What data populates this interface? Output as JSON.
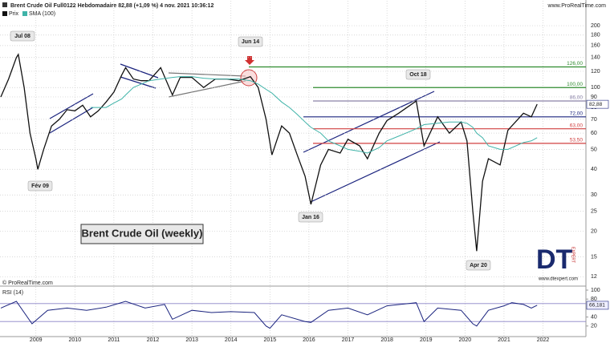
{
  "chart_data": [
    {
      "type": "line",
      "title": "Brent Crude Oil Full0122 Hebdomadaire 82,88 (+1,09 %) 4 nov. 2021 10:36:12",
      "source": "www.ProRealTime.com",
      "copyright": "© ProRealTime.com",
      "log_scale": true,
      "x": [
        2008.1,
        2008.3,
        2008.5,
        2008.55,
        2008.7,
        2008.85,
        2009.0,
        2009.05,
        2009.2,
        2009.4,
        2009.6,
        2009.8,
        2010.0,
        2010.2,
        2010.4,
        2010.6,
        2010.8,
        2011.0,
        2011.2,
        2011.3,
        2011.5,
        2011.7,
        2011.9,
        2012.2,
        2012.5,
        2012.7,
        2013.0,
        2013.3,
        2013.6,
        2013.9,
        2014.2,
        2014.5,
        2014.7,
        2014.9,
        2015.05,
        2015.3,
        2015.5,
        2015.7,
        2015.9,
        2016.05,
        2016.3,
        2016.5,
        2016.8,
        2017.0,
        2017.3,
        2017.5,
        2017.8,
        2018.0,
        2018.3,
        2018.75,
        2018.95,
        2019.3,
        2019.6,
        2019.9,
        2020.05,
        2020.2,
        2020.3,
        2020.45,
        2020.6,
        2020.9,
        2021.1,
        2021.5,
        2021.7,
        2021.85
      ],
      "series": [
        {
          "name": "Prix",
          "color": "#111111",
          "values": [
            90,
            110,
            140,
            145,
            100,
            60,
            45,
            40,
            50,
            65,
            70,
            78,
            77,
            82,
            72,
            77,
            85,
            95,
            115,
            125,
            110,
            108,
            108,
            125,
            92,
            112,
            112,
            100,
            110,
            110,
            108,
            113,
            100,
            70,
            47,
            65,
            60,
            47,
            37,
            27,
            42,
            50,
            48,
            56,
            52,
            45,
            60,
            69,
            75,
            86,
            52,
            72,
            60,
            68,
            55,
            25,
            16,
            35,
            45,
            42,
            62,
            75,
            72,
            83
          ]
        },
        {
          "name": "SMA (100)",
          "color": "#3fb3a8",
          "values": [
            null,
            null,
            null,
            null,
            null,
            null,
            null,
            null,
            null,
            null,
            null,
            null,
            null,
            null,
            80,
            80,
            80,
            84,
            88,
            92,
            100,
            104,
            108,
            110,
            112,
            113,
            113,
            111,
            110,
            110,
            110,
            108,
            104,
            98,
            94,
            85,
            80,
            74,
            68,
            64,
            60,
            55,
            52,
            50,
            49,
            48,
            51,
            55,
            58,
            63,
            66,
            67,
            68,
            68,
            67,
            64,
            60,
            57,
            52,
            50,
            50,
            54,
            55,
            57
          ]
        }
      ],
      "xlim": [
        2008.08,
        2023.1
      ],
      "xticks": [
        2009,
        2010,
        2011,
        2012,
        2013,
        2014,
        2015,
        2016,
        2017,
        2018,
        2019,
        2020,
        2021,
        2022
      ],
      "ylim": [
        11,
        255
      ],
      "yticks": [
        12,
        15,
        20,
        25,
        30,
        40,
        50,
        60,
        70,
        80,
        90,
        100,
        120,
        140,
        160,
        180,
        200
      ],
      "grid": true,
      "last_value": {
        "value": 82.88,
        "label": "82,88"
      },
      "levels": [
        {
          "value": 126,
          "label": "126,00",
          "color": "#2e8b2e"
        },
        {
          "value": 100,
          "label": "100,00",
          "color": "#2e8b2e"
        },
        {
          "value": 86,
          "label": "86,00",
          "color": "#8a82a8"
        },
        {
          "value": 72,
          "label": "72,00",
          "color": "#1a237e"
        },
        {
          "value": 63,
          "label": "63,00",
          "color": "#d04040"
        },
        {
          "value": 53.5,
          "label": "53,50",
          "color": "#d04040"
        }
      ],
      "annotations": [
        "Jul 08",
        "Fév 09",
        "Jun 14",
        "Oct 18",
        "Jan 16",
        "Apr 20",
        "Brent Crude Oil (weekly)"
      ],
      "logo": {
        "title": "DT",
        "subtitle": "EXPERT",
        "url": "www.dtexpert.com"
      }
    },
    {
      "type": "line",
      "title": "RSI (14)",
      "x": [
        2008.1,
        2008.5,
        2008.9,
        2009.3,
        2009.8,
        2010.3,
        2010.8,
        2011.3,
        2011.8,
        2012.3,
        2012.5,
        2013.0,
        2013.5,
        2014.0,
        2014.6,
        2014.9,
        2015.0,
        2015.3,
        2015.9,
        2016.05,
        2016.5,
        2017.0,
        2017.5,
        2018.0,
        2018.75,
        2018.95,
        2019.3,
        2019.9,
        2020.2,
        2020.3,
        2020.6,
        2021.0,
        2021.2,
        2021.5,
        2021.7,
        2021.85
      ],
      "series": [
        {
          "name": "RSI (14)",
          "color": "#1a237e",
          "values": [
            60,
            75,
            25,
            55,
            60,
            55,
            62,
            75,
            60,
            68,
            35,
            55,
            50,
            52,
            50,
            20,
            15,
            45,
            30,
            28,
            55,
            60,
            45,
            65,
            72,
            30,
            60,
            55,
            25,
            20,
            55,
            65,
            72,
            68,
            60,
            66.181
          ]
        }
      ],
      "xlim": [
        2008.08,
        2023.1
      ],
      "xticks": [
        2009,
        2010,
        2011,
        2012,
        2013,
        2014,
        2015,
        2016,
        2017,
        2018,
        2019,
        2020,
        2021,
        2022
      ],
      "ylim": [
        0,
        100
      ],
      "yticks": [
        20,
        40,
        80,
        100
      ],
      "levels": [
        70,
        30
      ],
      "last_value": {
        "value": 66.181,
        "label": "66,181"
      }
    }
  ]
}
